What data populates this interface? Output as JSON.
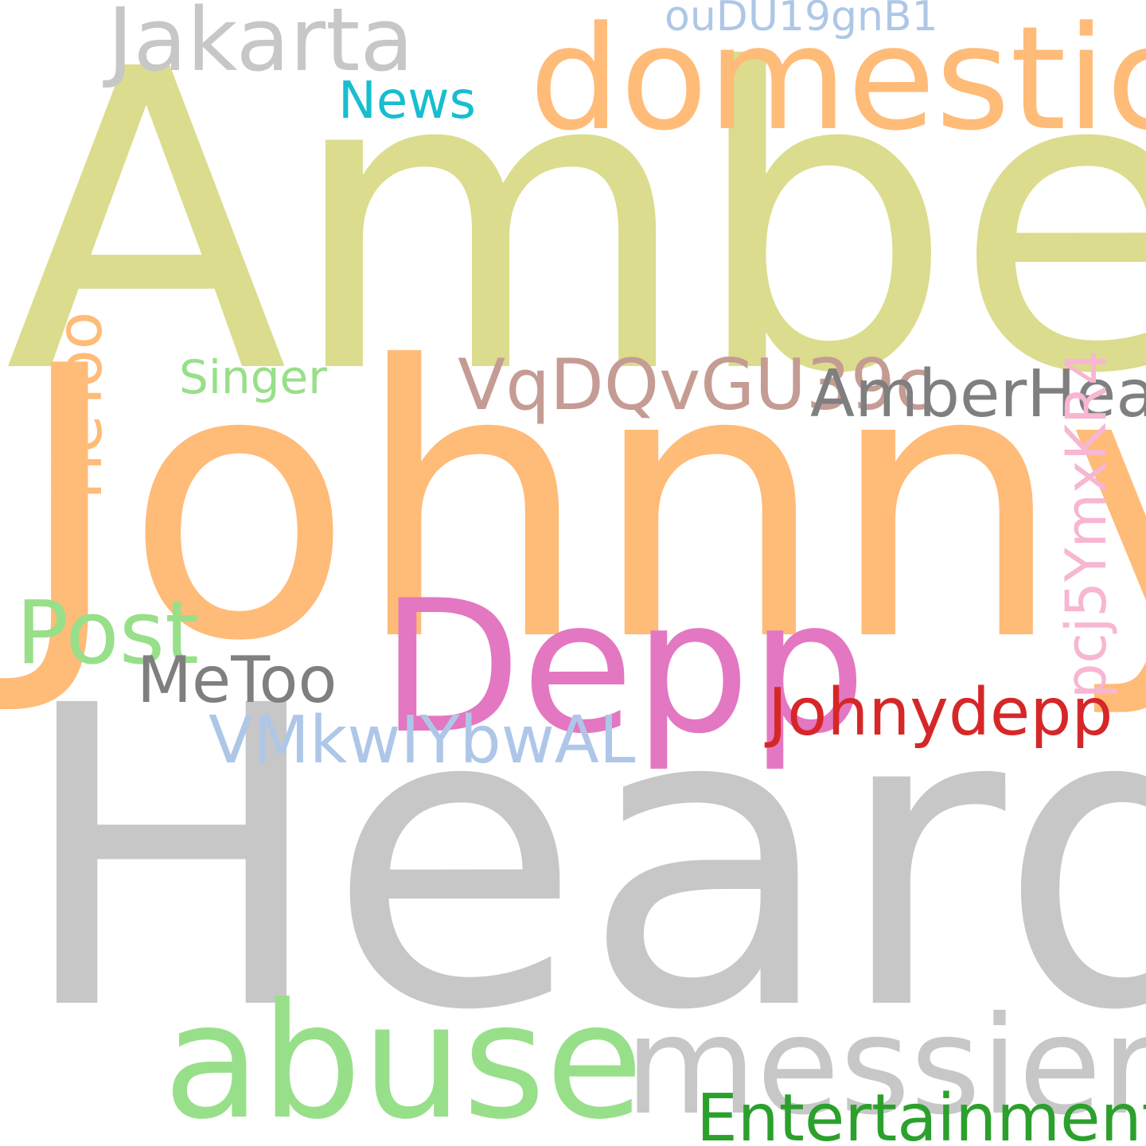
{
  "words": [
    {
      "key": "amber",
      "text": "Amber",
      "color": "#dbdc8d"
    },
    {
      "key": "johnny",
      "text": "Johnny",
      "color": "#ffbb78"
    },
    {
      "key": "heard",
      "text": "Heard",
      "color": "#c7c7c7"
    },
    {
      "key": "domestic",
      "text": "domestic",
      "color": "#ffbb78"
    },
    {
      "key": "jakarta",
      "text": "Jakarta",
      "color": "#c7c7c7"
    },
    {
      "key": "oudu19gnb1",
      "text": "ouDU19gnB1",
      "color": "#aec7e8"
    },
    {
      "key": "news",
      "text": "News",
      "color": "#17becf"
    },
    {
      "key": "depp",
      "text": "Depp",
      "color": "#e377c2"
    },
    {
      "key": "abuse",
      "text": "abuse",
      "color": "#98df8a"
    },
    {
      "key": "messier",
      "text": "messier",
      "color": "#c7c7c7"
    },
    {
      "key": "hetoo",
      "text": "HeToo",
      "color": "#ffbb78"
    },
    {
      "key": "singer",
      "text": "Singer",
      "color": "#98df8a"
    },
    {
      "key": "vqdqvgu39c",
      "text": "VqDQvGU39c",
      "color": "#c49c94"
    },
    {
      "key": "amberheard",
      "text": "AmberHeard",
      "color": "#7f7f7f"
    },
    {
      "key": "pcj5ymxkr4",
      "text": "pcj5YmxKR4",
      "color": "#f7b6d2"
    },
    {
      "key": "post",
      "text": "Post",
      "color": "#98df8a"
    },
    {
      "key": "metoo",
      "text": "MeToo",
      "color": "#7f7f7f"
    },
    {
      "key": "johnydepp",
      "text": "Johnydepp",
      "color": "#d62728"
    },
    {
      "key": "vmkwiybwal",
      "text": "VMkwIYbwAL",
      "color": "#aec7e8"
    },
    {
      "key": "entertainment",
      "text": "Entertainment",
      "color": "#2ca02c"
    }
  ]
}
